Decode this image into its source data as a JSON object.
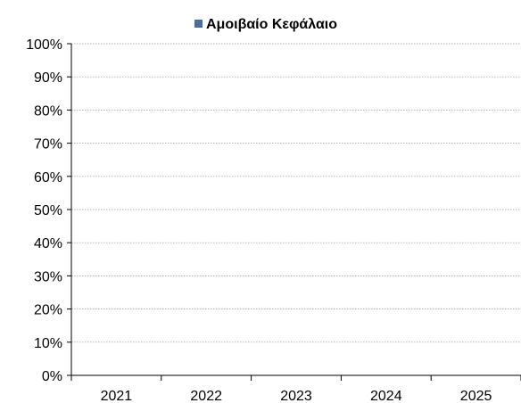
{
  "chart_data": {
    "type": "bar",
    "categories": [
      "2021",
      "2022",
      "2023",
      "2024",
      "2025"
    ],
    "series": [
      {
        "name": "Αμοιβαίο Κεφάλαιο",
        "values": [
          null,
          null,
          null,
          null,
          null
        ],
        "color": "#4f6a9b"
      }
    ],
    "ylim": [
      0,
      100
    ],
    "yticks": [
      "0%",
      "10%",
      "20%",
      "30%",
      "40%",
      "50%",
      "60%",
      "70%",
      "80%",
      "90%",
      "100%"
    ],
    "grid": true,
    "legend": "top-center"
  }
}
